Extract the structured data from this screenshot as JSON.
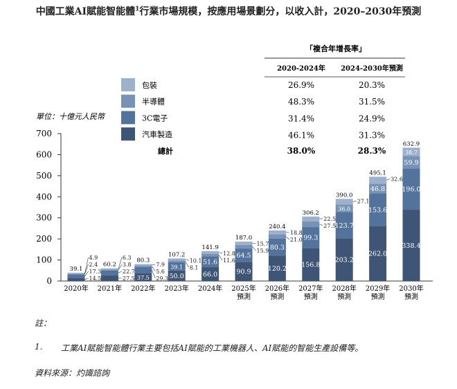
{
  "title": "中國工業AI賦能智能體",
  "title_sup": "1",
  "title_rest": "行業市場規模，按應用場景劃分，以收入計，2020–2030年預測",
  "cagr": {
    "heading": "「複合年增長率」",
    "columns": [
      "2020-2024年",
      "2024-2030年預測"
    ],
    "rows": [
      {
        "label": "包裝",
        "values": [
          "26.9%",
          "20.3%"
        ]
      },
      {
        "label": "半導體",
        "values": [
          "48.3%",
          "31.5%"
        ]
      },
      {
        "label": "3C電子",
        "values": [
          "31.4%",
          "24.9%"
        ]
      },
      {
        "label": "汽車製造",
        "values": [
          "46.1%",
          "31.3%"
        ]
      },
      {
        "label": "總計",
        "values": [
          "38.0%",
          "28.3%"
        ]
      }
    ]
  },
  "chart_data": {
    "type": "bar",
    "stacked": true,
    "title": "中國工業AI賦能智能體行業市場規模，按應用場景劃分，以收入計，2020–2030年預測",
    "ylabel": "單位：十億元人民幣",
    "ylim": [
      0,
      700
    ],
    "yticks": [
      "0",
      "100",
      "200",
      "300",
      "400",
      "500",
      "600",
      "700"
    ],
    "categories": [
      [
        "2020年"
      ],
      [
        "2021年"
      ],
      [
        "2022年"
      ],
      [
        "2023年"
      ],
      [
        "2024年"
      ],
      [
        "2025年",
        "預測"
      ],
      [
        "2026年",
        "預測"
      ],
      [
        "2027年",
        "預測"
      ],
      [
        "2028年",
        "預測"
      ],
      [
        "2029年",
        "預測"
      ],
      [
        "2030年",
        "預測"
      ]
    ],
    "series": [
      {
        "name": "汽車製造",
        "color": "#3e5575",
        "values": [
          14.5,
          27.5,
          37.5,
          50.0,
          66.0,
          90.9,
          120.2,
          156.8,
          203.2,
          262.0,
          338.4
        ]
      },
      {
        "name": "3C電子",
        "color": "#54739c",
        "values": [
          17.3,
          22.7,
          29.3,
          39.1,
          51.6,
          64.5,
          80.3,
          99.3,
          123.7,
          153.6,
          196.0
        ]
      },
      {
        "name": "半導體",
        "color": "#7892b6",
        "values": [
          2.4,
          3.8,
          5.6,
          8.1,
          11.6,
          15.9,
          21.0,
          27.5,
          36.0,
          46.8,
          59.9
        ]
      },
      {
        "name": "包裝",
        "color": "#9db0cc",
        "values": [
          4.9,
          6.3,
          7.9,
          10.1,
          12.8,
          15.7,
          18.8,
          22.5,
          27.1,
          32.6,
          38.7
        ]
      }
    ],
    "labels": [
      [
        "14.5",
        "27.5",
        "37.5",
        "50.0",
        "66.0",
        "90.9",
        "120.2",
        "156.8",
        "203.2",
        "262.0",
        "338.4"
      ],
      [
        "17.3",
        "22.7",
        "29.3",
        "39.1",
        "51.6",
        "64.5",
        "80.3",
        "99.3",
        "123.7",
        "153.6",
        "196.0"
      ],
      [
        "2.4",
        "3.8",
        "5.6",
        "8.1",
        "11.6",
        "15.9",
        "21.0",
        "27.5",
        "36.0",
        "46.8",
        "59.9"
      ],
      [
        "4.9",
        "6.3",
        "7.9",
        "10.1",
        "12.8",
        "15.7",
        "18.8",
        "22.5",
        "27.1",
        "32.6",
        "38.7"
      ]
    ],
    "totals": [
      "39.1",
      "60.2",
      "80.3",
      "107.2",
      "141.9",
      "187.0",
      "240.4",
      "306.2",
      "390.0",
      "495.1",
      "632.9"
    ],
    "legend": [
      "包裝",
      "半導體",
      "3C電子",
      "汽車製造"
    ],
    "legend_position": "top-center",
    "grid": false
  },
  "notes": {
    "heading": "註：",
    "items": [
      {
        "num": "1.",
        "text": "工業AI賦能智能體行業主要包括AI賦能的工業機器人、AI賦能的智能生產設備等。"
      }
    ],
    "source": "資料來源：灼識諮詢"
  }
}
